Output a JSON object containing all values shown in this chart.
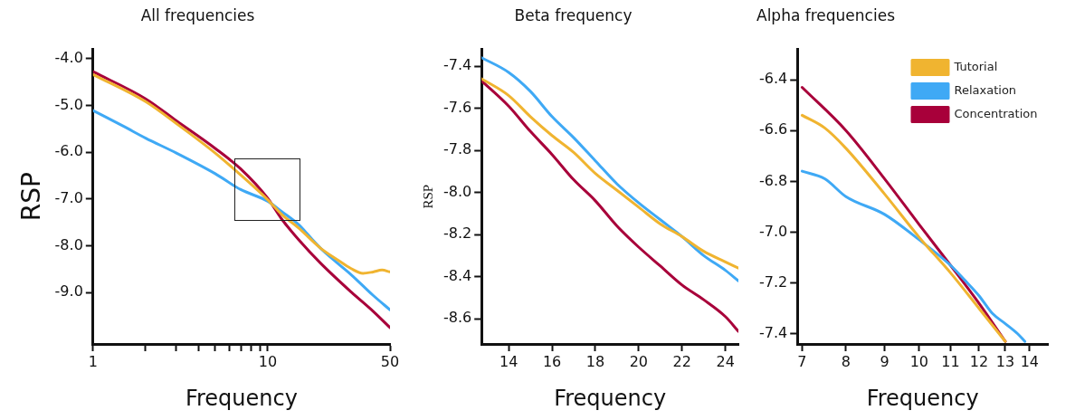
{
  "chart_data": [
    {
      "type": "line",
      "title": "All frequencies",
      "xlabel": "Frequency",
      "ylabel": "RSP",
      "log": "x",
      "grid": false,
      "legend": false,
      "marker": "none",
      "line_style": "solid",
      "xlim": [
        1,
        50
      ],
      "xticks": [
        1,
        {
          "value": 2,
          "label": null
        },
        {
          "value": 3,
          "label": null
        },
        {
          "value": 4,
          "label": null
        },
        {
          "value": 5,
          "label": null
        },
        {
          "value": 6,
          "label": null
        },
        {
          "value": 7,
          "label": null
        },
        {
          "value": 8,
          "label": null
        },
        {
          "value": 9,
          "label": null
        },
        10,
        50
      ],
      "ylim": [
        -10.1,
        -3.8
      ],
      "yticks": [
        {
          "value": -4,
          "label": "-4.0"
        },
        {
          "value": -5,
          "label": "-5.0"
        },
        {
          "value": -6,
          "label": "-6.0"
        },
        {
          "value": -7,
          "label": "-7.0"
        },
        {
          "value": -8,
          "label": "-8.0"
        },
        {
          "value": -9,
          "label": "-9.0"
        }
      ],
      "series": [
        {
          "color": "#f0b430",
          "x": [
            1,
            2,
            3,
            5,
            7,
            10,
            12,
            15,
            20,
            25,
            30,
            35,
            40,
            45,
            50
          ],
          "values": [
            -4.34,
            -4.92,
            -5.39,
            -6.02,
            -6.49,
            -7.02,
            -7.33,
            -7.62,
            -8.05,
            -8.3,
            -8.49,
            -8.59,
            -8.56,
            -8.52,
            -8.56
          ]
        },
        {
          "color": "#3fa9f5",
          "x": [
            1,
            1.5,
            2,
            3,
            5,
            7,
            10,
            12,
            15,
            18,
            20,
            25,
            30,
            40,
            50
          ],
          "values": [
            -5.11,
            -5.45,
            -5.7,
            -6.02,
            -6.46,
            -6.8,
            -7.05,
            -7.27,
            -7.55,
            -7.87,
            -8.05,
            -8.37,
            -8.62,
            -9.06,
            -9.37
          ]
        },
        {
          "color": "#a8003a",
          "x": [
            1,
            2,
            3,
            5,
            7,
            10,
            12,
            15,
            20,
            30,
            40,
            50
          ],
          "values": [
            -4.28,
            -4.86,
            -5.33,
            -5.92,
            -6.36,
            -6.99,
            -7.43,
            -7.87,
            -8.37,
            -8.99,
            -9.4,
            -9.75
          ]
        }
      ]
    },
    {
      "type": "line",
      "title": "Beta frequency",
      "xlabel": "Frequency",
      "ylabel": "RSP",
      "grid": false,
      "legend": false,
      "marker": "none",
      "line_style": "solid",
      "xlim": [
        12.75,
        24.6
      ],
      "xticks": [
        14,
        16,
        18,
        20,
        22,
        24
      ],
      "ylim": [
        -8.72,
        -7.32
      ],
      "yticks": [
        -7.4,
        -7.6,
        -7.8,
        {
          "value": -8,
          "label": "-8.0"
        },
        -8.2,
        -8.4,
        -8.6
      ],
      "series": [
        {
          "color": "#f0b430",
          "x": [
            12.75,
            14,
            15,
            16,
            17,
            18,
            19,
            20,
            21,
            22,
            23,
            24,
            24.6
          ],
          "values": [
            -7.46,
            -7.54,
            -7.64,
            -7.73,
            -7.81,
            -7.91,
            -7.99,
            -8.07,
            -8.15,
            -8.21,
            -8.28,
            -8.33,
            -8.36
          ]
        },
        {
          "color": "#3fa9f5",
          "x": [
            12.75,
            14,
            15,
            16,
            17,
            18,
            19,
            20,
            21,
            22,
            23,
            24,
            24.6
          ],
          "values": [
            -7.36,
            -7.43,
            -7.52,
            -7.64,
            -7.74,
            -7.85,
            -7.96,
            -8.05,
            -8.13,
            -8.21,
            -8.3,
            -8.37,
            -8.42
          ]
        },
        {
          "color": "#a8003a",
          "x": [
            12.75,
            14,
            15,
            16,
            17,
            18,
            19,
            20,
            21,
            22,
            23,
            24,
            24.6
          ],
          "values": [
            -7.47,
            -7.59,
            -7.71,
            -7.82,
            -7.94,
            -8.04,
            -8.16,
            -8.26,
            -8.35,
            -8.44,
            -8.51,
            -8.59,
            -8.66
          ]
        }
      ]
    },
    {
      "type": "line",
      "title": "Alpha frequencies",
      "xlabel": "Frequency",
      "log": "x",
      "grid": false,
      "legend": "top right",
      "marker": "none",
      "line_style": "solid",
      "xlim": [
        6.9,
        14.8
      ],
      "xticks": [
        7,
        8,
        9,
        10,
        11,
        12,
        13,
        14
      ],
      "ylim": [
        -7.44,
        -6.28
      ],
      "yticks": [
        -6.4,
        -6.6,
        -6.8,
        {
          "value": -7,
          "label": "-7.0"
        },
        -7.2,
        -7.4
      ],
      "series": [
        {
          "name": "Tutorial",
          "color": "#f0b430",
          "x": [
            7,
            7.5,
            8,
            9,
            10,
            11,
            12,
            13
          ],
          "values": [
            -6.54,
            -6.59,
            -6.67,
            -6.85,
            -7.02,
            -7.16,
            -7.3,
            -7.43
          ]
        },
        {
          "name": "Relaxation",
          "color": "#3fa9f5",
          "x": [
            7,
            7.5,
            8,
            9,
            10,
            11,
            11.5,
            12,
            12.5,
            13,
            13.5,
            13.8
          ],
          "values": [
            -6.76,
            -6.79,
            -6.86,
            -6.93,
            -7.03,
            -7.13,
            -7.19,
            -7.25,
            -7.32,
            -7.36,
            -7.4,
            -7.43
          ]
        },
        {
          "name": "Concentration",
          "color": "#a8003a",
          "x": [
            7,
            8,
            9,
            10,
            11,
            12,
            13
          ],
          "values": [
            -6.43,
            -6.6,
            -6.79,
            -6.97,
            -7.13,
            -7.28,
            -7.43
          ]
        }
      ]
    }
  ]
}
